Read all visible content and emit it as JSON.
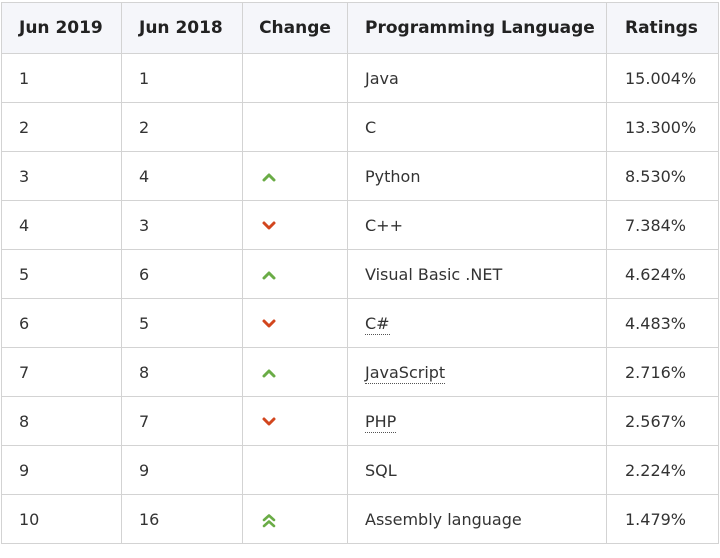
{
  "colors": {
    "up": "#6aac46",
    "down": "#d2461e",
    "border": "#d3d3d3",
    "header_bg": "#f5f6fa"
  },
  "headers": [
    "Jun 2019",
    "Jun 2018",
    "Change",
    "Programming Language",
    "Ratings"
  ],
  "rows": [
    {
      "jun2019": "1",
      "jun2018": "1",
      "change": "none",
      "language": "Java",
      "abbr": false,
      "rating": "15.004%"
    },
    {
      "jun2019": "2",
      "jun2018": "2",
      "change": "none",
      "language": "C",
      "abbr": false,
      "rating": "13.300%"
    },
    {
      "jun2019": "3",
      "jun2018": "4",
      "change": "up",
      "language": "Python",
      "abbr": false,
      "rating": "8.530%"
    },
    {
      "jun2019": "4",
      "jun2018": "3",
      "change": "down",
      "language": "C++",
      "abbr": false,
      "rating": "7.384%"
    },
    {
      "jun2019": "5",
      "jun2018": "6",
      "change": "up",
      "language": "Visual Basic .NET",
      "abbr": false,
      "rating": "4.624%"
    },
    {
      "jun2019": "6",
      "jun2018": "5",
      "change": "down",
      "language": "C#",
      "abbr": true,
      "rating": "4.483%"
    },
    {
      "jun2019": "7",
      "jun2018": "8",
      "change": "up",
      "language": "JavaScript",
      "abbr": true,
      "rating": "2.716%"
    },
    {
      "jun2019": "8",
      "jun2018": "7",
      "change": "down",
      "language": "PHP",
      "abbr": true,
      "rating": "2.567%"
    },
    {
      "jun2019": "9",
      "jun2018": "9",
      "change": "none",
      "language": "SQL",
      "abbr": false,
      "rating": "2.224%"
    },
    {
      "jun2019": "10",
      "jun2018": "16",
      "change": "double-up",
      "language": "Assembly language",
      "abbr": false,
      "rating": "1.479%"
    }
  ]
}
